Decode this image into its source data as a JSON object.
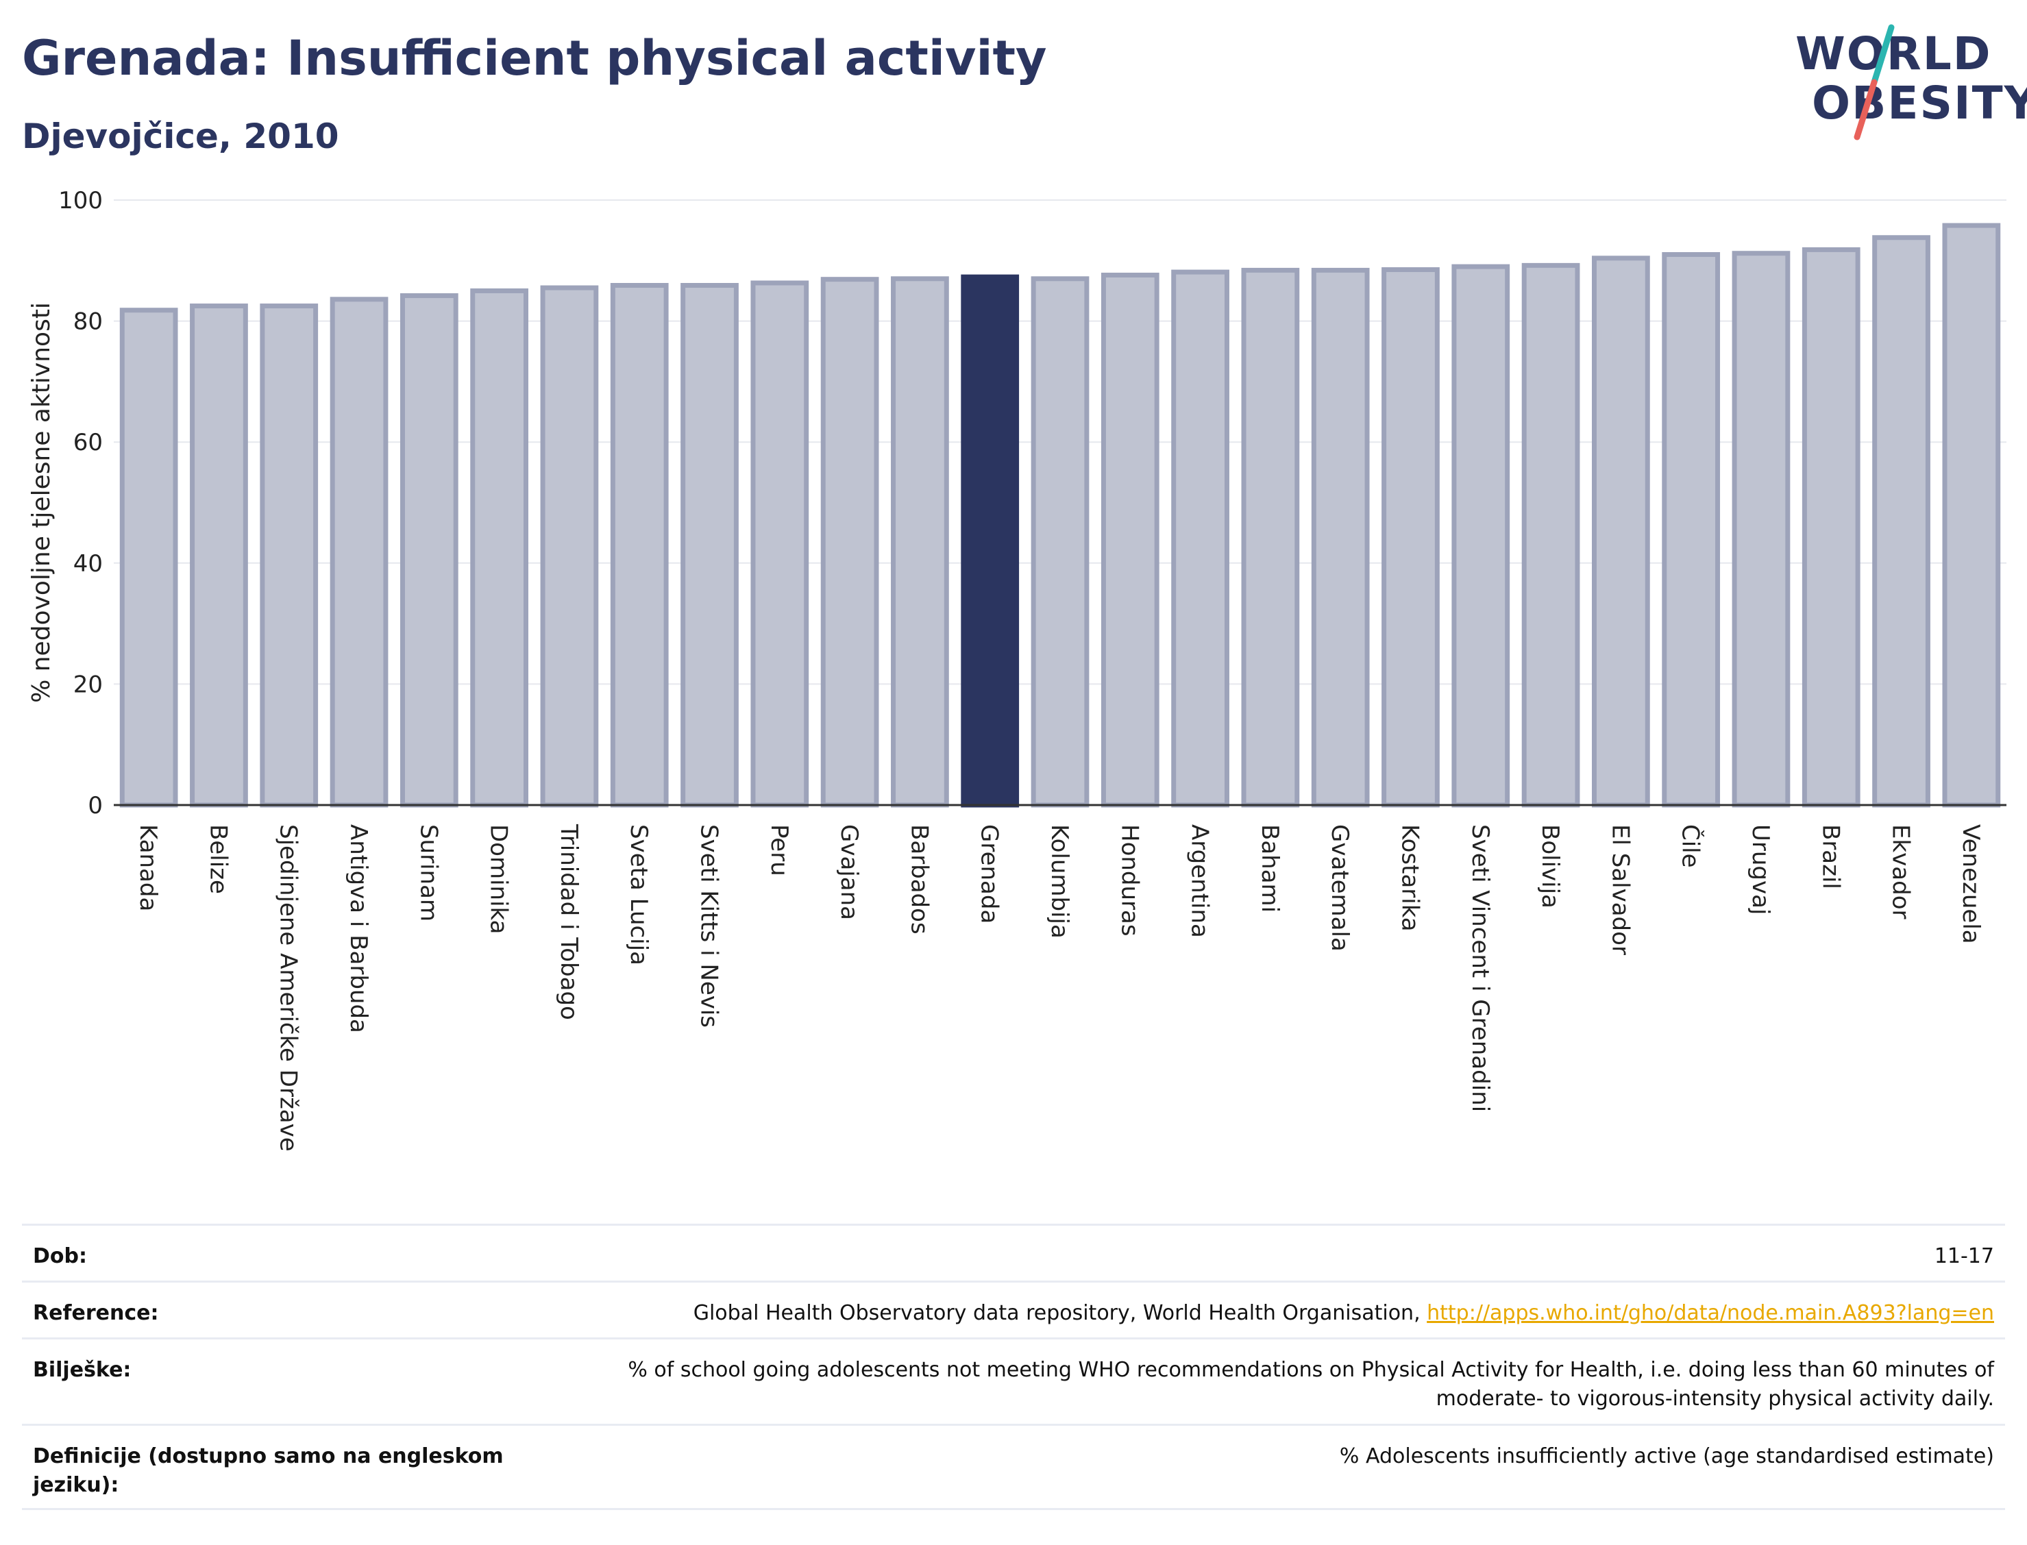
{
  "header": {
    "title": "Grenada: Insufficient physical activity",
    "subtitle": "Djevojčice, 2010"
  },
  "logo": {
    "line1": "WORLD",
    "line2": "OBESITY",
    "slash_colors": [
      "#2bb5b0",
      "#e8615a"
    ],
    "text_color": "#2b3560"
  },
  "colors": {
    "bar": "#bfc3d1",
    "bar_border": "#9da3ba",
    "highlight": "#2b3560",
    "grid": "#e6e8ee",
    "axis": "#333333"
  },
  "chart_data": {
    "type": "bar",
    "ylabel": "% nedovoljne tjelesne aktivnosti",
    "ylim": [
      0,
      100
    ],
    "yticks": [
      0,
      20,
      40,
      60,
      80,
      100
    ],
    "grid": true,
    "highlight": "Grenada",
    "categories": [
      "Kanada",
      "Belize",
      "Sjedinjene Američke Države",
      "Antigva i Barbuda",
      "Surinam",
      "Dominika",
      "Trinidad i Tobago",
      "Sveta Lucija",
      "Sveti Kitts i Nevis",
      "Peru",
      "Gvajana",
      "Barbados",
      "Grenada",
      "Kolumbija",
      "Honduras",
      "Argentina",
      "Bahami",
      "Gvatemala",
      "Kostarika",
      "Sveti Vincent i Grenadini",
      "Bolivija",
      "El Salvador",
      "Čile",
      "Urugvaj",
      "Brazil",
      "Ekvador",
      "Venezuela"
    ],
    "values": [
      81.8,
      82.5,
      82.5,
      83.6,
      84.2,
      85.0,
      85.5,
      85.9,
      85.9,
      86.3,
      86.9,
      87.0,
      87.3,
      87.0,
      87.6,
      88.1,
      88.4,
      88.4,
      88.5,
      89.0,
      89.2,
      90.4,
      91.0,
      91.2,
      91.8,
      93.8,
      95.8
    ]
  },
  "info_table": [
    {
      "key": "Dob:",
      "value": "11-17"
    },
    {
      "key": "Reference:",
      "value": "Global Health Observatory data repository, World Health Organisation, ",
      "link": "http://apps.who.int/gho/data/node.main.A893?lang=en"
    },
    {
      "key": "Bilješke:",
      "value": "% of school going adolescents not meeting WHO recommendations on Physical Activity for Health, i.e. doing less than 60 minutes of moderate- to vigorous-intensity physical activity daily."
    },
    {
      "key": "Definicije (dostupno samo na engleskom jeziku):",
      "value": "% Adolescents insufficiently active (age standardised estimate)"
    }
  ]
}
